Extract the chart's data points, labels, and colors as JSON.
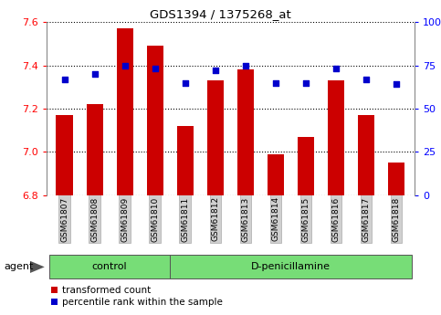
{
  "title": "GDS1394 / 1375268_at",
  "samples": [
    "GSM61807",
    "GSM61808",
    "GSM61809",
    "GSM61810",
    "GSM61811",
    "GSM61812",
    "GSM61813",
    "GSM61814",
    "GSM61815",
    "GSM61816",
    "GSM61817",
    "GSM61818"
  ],
  "transformed_count": [
    7.17,
    7.22,
    7.57,
    7.49,
    7.12,
    7.33,
    7.38,
    6.99,
    7.07,
    7.33,
    7.17,
    6.95
  ],
  "percentile_rank": [
    67,
    70,
    75,
    73,
    65,
    72,
    75,
    65,
    65,
    73,
    67,
    64
  ],
  "groups": [
    {
      "label": "control",
      "start": 0,
      "end": 4,
      "color": "#77dd77"
    },
    {
      "label": "D-penicillamine",
      "start": 4,
      "end": 12,
      "color": "#77dd77"
    }
  ],
  "ylim_left": [
    6.8,
    7.6
  ],
  "ylim_right": [
    0,
    100
  ],
  "yticks_left": [
    6.8,
    7.0,
    7.2,
    7.4,
    7.6
  ],
  "yticks_right": [
    0,
    25,
    50,
    75,
    100
  ],
  "bar_color": "#cc0000",
  "dot_color": "#0000cc",
  "bar_width": 0.55,
  "bg_color": "#ffffff",
  "agent_label": "agent",
  "legend_bar": "transformed count",
  "legend_dot": "percentile rank within the sample",
  "tick_bg_color": "#d0d0d0",
  "tick_edge_color": "#aaaaaa"
}
